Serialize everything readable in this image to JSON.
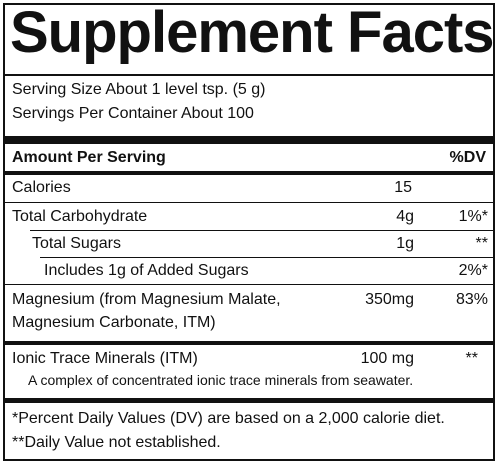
{
  "title": "Supplement Facts",
  "serving_size": "Serving Size About 1 level tsp. (5 g)",
  "servings_per_container": "Servings Per Container About 100",
  "header": {
    "amount": "Amount Per Serving",
    "dv": "%DV"
  },
  "rows": [
    {
      "name": "Calories",
      "amount": "15",
      "dv": ""
    },
    {
      "name": "Total Carbohydrate",
      "amount": "4g",
      "dv": "1%*"
    },
    {
      "name": "Total Sugars",
      "amount": "1g",
      "dv": "**"
    },
    {
      "name": "Includes 1g of Added Sugars",
      "amount": "",
      "dv": "2%*"
    },
    {
      "name": "Magnesium (from  Magnesium Malate,",
      "name2": "Magnesium Carbonate, ITM)",
      "amount": "350mg",
      "dv": "83%"
    },
    {
      "name": "Ionic Trace Minerals (ITM)",
      "amount": "100 mg",
      "dv": "**",
      "note": "A complex of concentrated ionic trace minerals from seawater."
    }
  ],
  "footnotes": [
    "*Percent Daily Values (DV) are based on a 2,000 calorie diet.",
    "**Daily Value not established."
  ]
}
